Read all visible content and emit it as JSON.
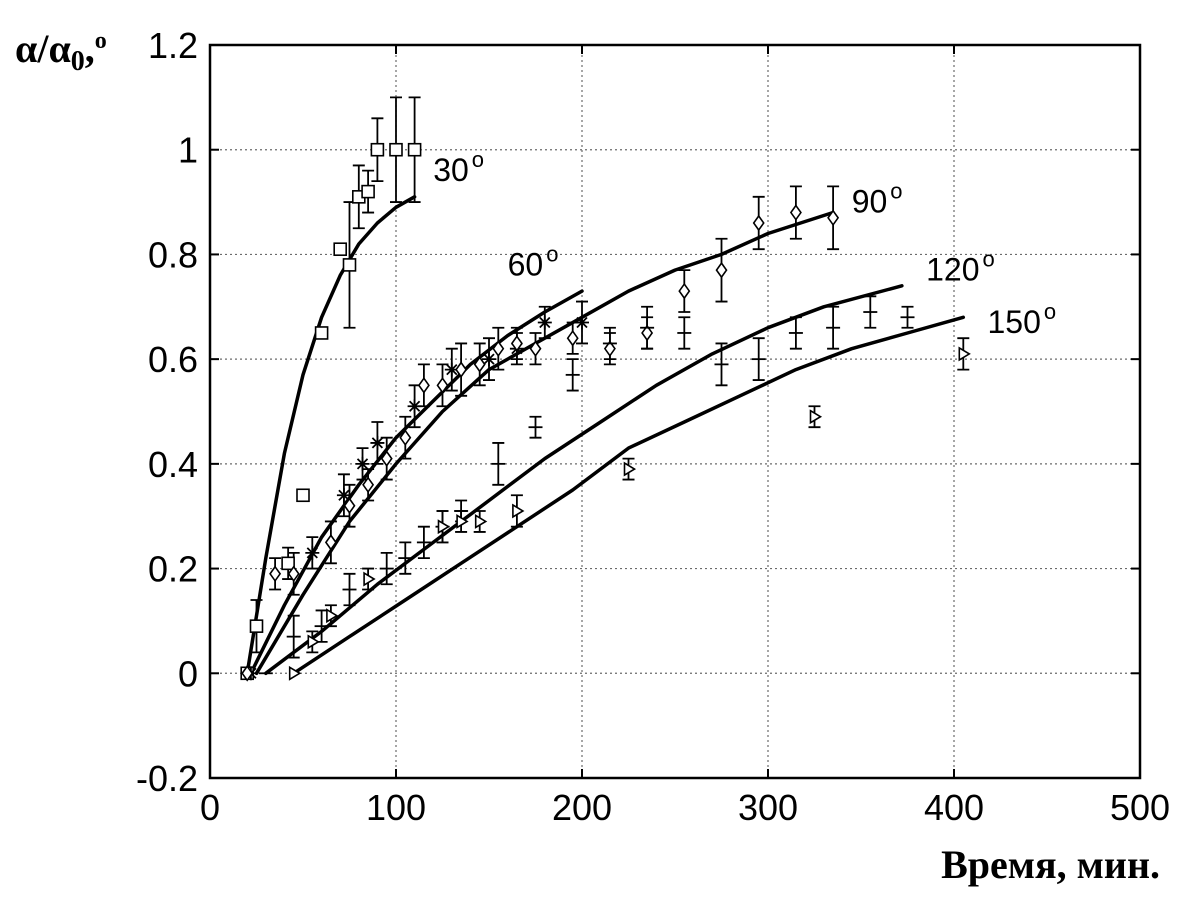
{
  "chart_data": {
    "type": "scatter",
    "title": "",
    "ylabel_parts": [
      "α/α",
      "0",
      ",",
      "o"
    ],
    "xlabel": "Время, мин.",
    "xlim": [
      0,
      500
    ],
    "ylim": [
      -0.2,
      1.2
    ],
    "xticks": [
      0,
      100,
      200,
      300,
      400,
      500
    ],
    "yticks": [
      -0.2,
      0,
      0.2,
      0.4,
      0.6,
      0.8,
      1,
      1.2
    ],
    "ytick_labels": [
      "-0.2",
      "0",
      "0.2",
      "0.4",
      "0.6",
      "0.8",
      "1",
      "1.2"
    ],
    "xtick_labels": [
      "0",
      "100",
      "200",
      "300",
      "400",
      "500"
    ],
    "grid": true,
    "series": [
      {
        "name": "30",
        "marker": "square",
        "label_at": [
          120,
          0.94
        ],
        "points": [
          {
            "x": 20,
            "y": 0,
            "err": 0
          },
          {
            "x": 25,
            "y": 0.09,
            "err": 0.05
          },
          {
            "x": 42,
            "y": 0.21,
            "err": 0.03
          },
          {
            "x": 50,
            "y": 0.34,
            "err": 0.01
          },
          {
            "x": 60,
            "y": 0.65,
            "err": 0.01
          },
          {
            "x": 70,
            "y": 0.81,
            "err": 0.01
          },
          {
            "x": 75,
            "y": 0.78,
            "err": 0.12
          },
          {
            "x": 80,
            "y": 0.91,
            "err": 0.06
          },
          {
            "x": 85,
            "y": 0.92,
            "err": 0.04
          },
          {
            "x": 90,
            "y": 1.0,
            "err": 0.06
          },
          {
            "x": 100,
            "y": 1.0,
            "err": 0.1
          },
          {
            "x": 110,
            "y": 1.0,
            "err": 0.1
          }
        ],
        "fit": [
          [
            20,
            0
          ],
          [
            30,
            0.22
          ],
          [
            40,
            0.42
          ],
          [
            50,
            0.57
          ],
          [
            60,
            0.68
          ],
          [
            70,
            0.76
          ],
          [
            80,
            0.82
          ],
          [
            90,
            0.86
          ],
          [
            100,
            0.89
          ],
          [
            110,
            0.91
          ]
        ]
      },
      {
        "name": "60",
        "marker": "asterisk",
        "label_at": [
          160,
          0.76
        ],
        "points": [
          {
            "x": 22,
            "y": 0,
            "err": 0
          },
          {
            "x": 55,
            "y": 0.23,
            "err": 0.03
          },
          {
            "x": 72,
            "y": 0.34,
            "err": 0.04
          },
          {
            "x": 82,
            "y": 0.4,
            "err": 0.03
          },
          {
            "x": 90,
            "y": 0.44,
            "err": 0.04
          },
          {
            "x": 110,
            "y": 0.51,
            "err": 0.04
          },
          {
            "x": 130,
            "y": 0.58,
            "err": 0.04
          },
          {
            "x": 150,
            "y": 0.6,
            "err": 0.04
          },
          {
            "x": 165,
            "y": 0.62,
            "err": 0.03
          },
          {
            "x": 180,
            "y": 0.67,
            "err": 0.03
          },
          {
            "x": 200,
            "y": 0.67,
            "err": 0.04
          }
        ],
        "fit": [
          [
            22,
            0
          ],
          [
            40,
            0.13
          ],
          [
            60,
            0.26
          ],
          [
            80,
            0.36
          ],
          [
            100,
            0.45
          ],
          [
            120,
            0.52
          ],
          [
            140,
            0.59
          ],
          [
            160,
            0.645
          ],
          [
            180,
            0.69
          ],
          [
            200,
            0.73
          ]
        ]
      },
      {
        "name": "90",
        "marker": "diamond",
        "label_at": [
          345,
          0.88
        ],
        "points": [
          {
            "x": 20,
            "y": 0,
            "err": 0
          },
          {
            "x": 35,
            "y": 0.19,
            "err": 0.03
          },
          {
            "x": 45,
            "y": 0.19,
            "err": 0.04
          },
          {
            "x": 65,
            "y": 0.25,
            "err": 0.04
          },
          {
            "x": 75,
            "y": 0.32,
            "err": 0.04
          },
          {
            "x": 85,
            "y": 0.36,
            "err": 0.03
          },
          {
            "x": 95,
            "y": 0.41,
            "err": 0.04
          },
          {
            "x": 105,
            "y": 0.45,
            "err": 0.04
          },
          {
            "x": 115,
            "y": 0.55,
            "err": 0.04
          },
          {
            "x": 125,
            "y": 0.55,
            "err": 0.04
          },
          {
            "x": 135,
            "y": 0.58,
            "err": 0.05
          },
          {
            "x": 145,
            "y": 0.59,
            "err": 0.04
          },
          {
            "x": 155,
            "y": 0.62,
            "err": 0.04
          },
          {
            "x": 165,
            "y": 0.63,
            "err": 0.03
          },
          {
            "x": 175,
            "y": 0.62,
            "err": 0.03
          },
          {
            "x": 195,
            "y": 0.64,
            "err": 0.03
          },
          {
            "x": 215,
            "y": 0.62,
            "err": 0.03
          },
          {
            "x": 235,
            "y": 0.65,
            "err": 0.03
          },
          {
            "x": 255,
            "y": 0.73,
            "err": 0.04
          },
          {
            "x": 275,
            "y": 0.77,
            "err": 0.06
          },
          {
            "x": 295,
            "y": 0.86,
            "err": 0.05
          },
          {
            "x": 315,
            "y": 0.88,
            "err": 0.05
          },
          {
            "x": 335,
            "y": 0.87,
            "err": 0.06
          }
        ],
        "fit": [
          [
            25,
            0
          ],
          [
            50,
            0.15
          ],
          [
            75,
            0.29
          ],
          [
            100,
            0.4
          ],
          [
            125,
            0.5
          ],
          [
            150,
            0.58
          ],
          [
            175,
            0.63
          ],
          [
            200,
            0.68
          ],
          [
            225,
            0.73
          ],
          [
            250,
            0.77
          ],
          [
            275,
            0.8
          ],
          [
            300,
            0.84
          ],
          [
            335,
            0.88
          ]
        ]
      },
      {
        "name": "120",
        "marker": "plus",
        "label_at": [
          385,
          0.75
        ],
        "points": [
          {
            "x": 30,
            "y": 0,
            "err": 0
          },
          {
            "x": 45,
            "y": 0.07,
            "err": 0.04
          },
          {
            "x": 60,
            "y": 0.09,
            "err": 0.03
          },
          {
            "x": 75,
            "y": 0.16,
            "err": 0.03
          },
          {
            "x": 95,
            "y": 0.2,
            "err": 0.03
          },
          {
            "x": 105,
            "y": 0.22,
            "err": 0.03
          },
          {
            "x": 115,
            "y": 0.25,
            "err": 0.03
          },
          {
            "x": 125,
            "y": 0.28,
            "err": 0.03
          },
          {
            "x": 135,
            "y": 0.31,
            "err": 0.02
          },
          {
            "x": 155,
            "y": 0.4,
            "err": 0.04
          },
          {
            "x": 175,
            "y": 0.47,
            "err": 0.02
          },
          {
            "x": 195,
            "y": 0.57,
            "err": 0.03
          },
          {
            "x": 215,
            "y": 0.63,
            "err": 0.03
          },
          {
            "x": 235,
            "y": 0.66,
            "err": 0.04
          },
          {
            "x": 255,
            "y": 0.65,
            "err": 0.03
          },
          {
            "x": 275,
            "y": 0.59,
            "err": 0.04
          },
          {
            "x": 295,
            "y": 0.6,
            "err": 0.04
          },
          {
            "x": 315,
            "y": 0.65,
            "err": 0.03
          },
          {
            "x": 335,
            "y": 0.66,
            "err": 0.04
          },
          {
            "x": 355,
            "y": 0.69,
            "err": 0.03
          },
          {
            "x": 375,
            "y": 0.68,
            "err": 0.02
          }
        ],
        "fit": [
          [
            30,
            0
          ],
          [
            60,
            0.08
          ],
          [
            90,
            0.17
          ],
          [
            120,
            0.25
          ],
          [
            150,
            0.33
          ],
          [
            180,
            0.41
          ],
          [
            210,
            0.48
          ],
          [
            240,
            0.55
          ],
          [
            270,
            0.61
          ],
          [
            300,
            0.66
          ],
          [
            330,
            0.7
          ],
          [
            372,
            0.74
          ]
        ]
      },
      {
        "name": "150",
        "marker": "triangle-right",
        "label_at": [
          418,
          0.65
        ],
        "points": [
          {
            "x": 45,
            "y": 0,
            "err": 0
          },
          {
            "x": 55,
            "y": 0.06,
            "err": 0.02
          },
          {
            "x": 65,
            "y": 0.11,
            "err": 0.02
          },
          {
            "x": 85,
            "y": 0.18,
            "err": 0.02
          },
          {
            "x": 125,
            "y": 0.28,
            "err": 0.03
          },
          {
            "x": 135,
            "y": 0.29,
            "err": 0.02
          },
          {
            "x": 145,
            "y": 0.29,
            "err": 0.02
          },
          {
            "x": 165,
            "y": 0.31,
            "err": 0.03
          },
          {
            "x": 225,
            "y": 0.39,
            "err": 0.02
          },
          {
            "x": 325,
            "y": 0.49,
            "err": 0.02
          },
          {
            "x": 405,
            "y": 0.61,
            "err": 0.03
          }
        ],
        "fit": [
          [
            45,
            0
          ],
          [
            75,
            0.07
          ],
          [
            105,
            0.14
          ],
          [
            135,
            0.21
          ],
          [
            165,
            0.28
          ],
          [
            195,
            0.35
          ],
          [
            225,
            0.43
          ],
          [
            255,
            0.48
          ],
          [
            285,
            0.53
          ],
          [
            315,
            0.58
          ],
          [
            345,
            0.62
          ],
          [
            375,
            0.65
          ],
          [
            405,
            0.68
          ]
        ]
      }
    ]
  }
}
